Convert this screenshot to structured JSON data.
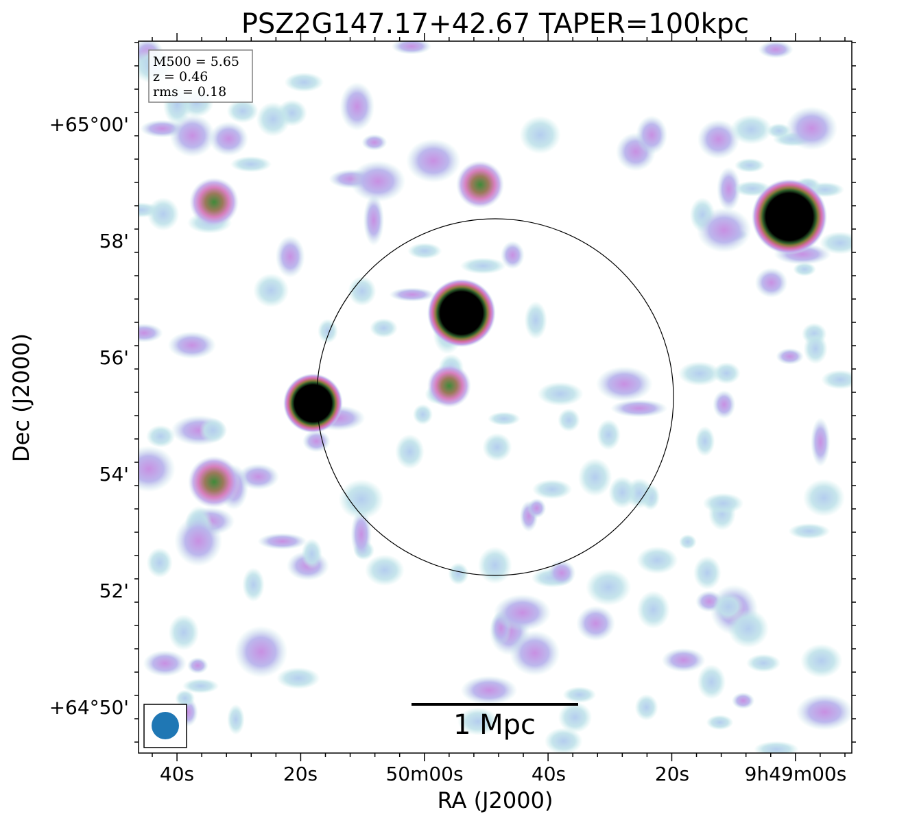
{
  "chart_data": {
    "type": "heatmap",
    "title": "PSZ2G147.17+42.67 TAPER=100kpc",
    "xlabel": "RA (J2000)",
    "ylabel": "Dec (J2000)",
    "x_tick_labels": [
      "40s",
      "20s",
      "50m00s",
      "40s",
      "20s",
      "9h49m00s"
    ],
    "y_tick_labels": [
      "+65°00'",
      "58'",
      "56'",
      "54'",
      "52'",
      "+64°50'"
    ],
    "info_box": {
      "lines": [
        "M500 = 5.65",
        "z = 0.46",
        "rms = 0.18"
      ],
      "position": "top-left"
    },
    "scale_bar_label": "1 Mpc",
    "beam_color": "#1f77b4",
    "colormap": [
      "#ffffff",
      "#bfe6e6",
      "#b4c8ee",
      "#c89be6",
      "#d77fbd",
      "#5e8a36",
      "#000000"
    ],
    "circle": {
      "center_ra": "9h49m44s",
      "center_dec": "+64°55.3'",
      "radius_arcmin": 3.05
    },
    "bright_sources": [
      {
        "ra": "9h49m54s",
        "dec": "+64°56.75'",
        "peak": 10.0
      },
      {
        "ra": "9h49m01s",
        "dec": "+64°58.4'",
        "peak": 12.0
      },
      {
        "ra": "9h50m18s",
        "dec": "+64°55.2'",
        "peak": 7.5
      },
      {
        "ra": "9h50m34s",
        "dec": "+64°53.85'",
        "peak": 3.2
      },
      {
        "ra": "9h50m34s",
        "dec": "+64°58.65'",
        "peak": 2.8
      },
      {
        "ra": "9h49m51s",
        "dec": "+64°58.95'",
        "peak": 2.6
      },
      {
        "ra": "9h49m56s",
        "dec": "+64°55.5'",
        "peak": 2.0
      }
    ]
  }
}
